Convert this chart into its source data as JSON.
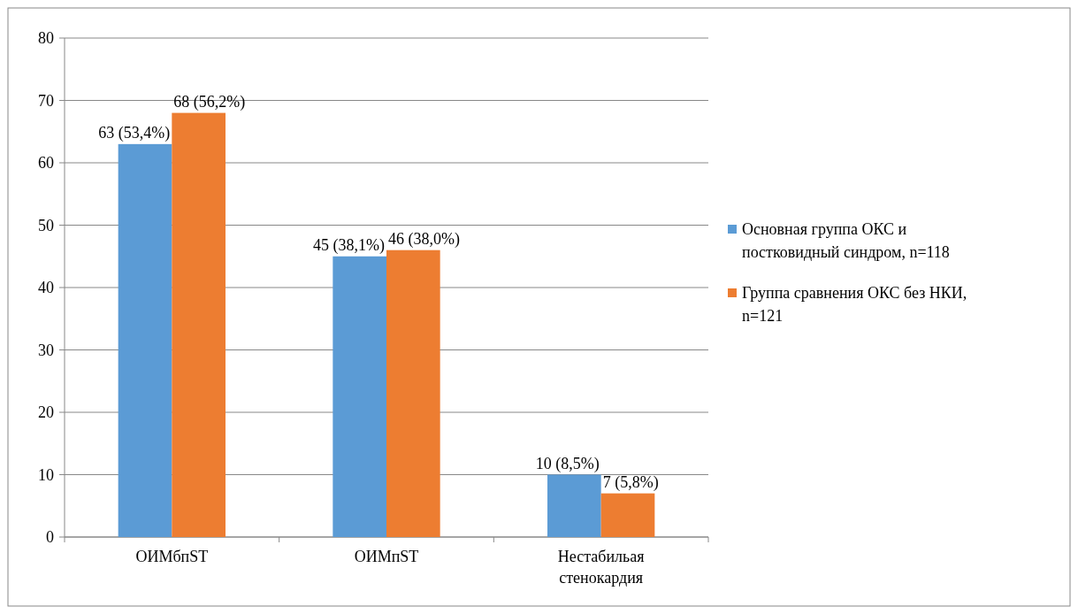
{
  "chart_data": {
    "type": "bar",
    "categories": [
      "ОИМбпST",
      "ОИМпST",
      "Нестабильая стенокардия"
    ],
    "series": [
      {
        "name": "Основная группа ОКС и постковидный синдром, n=118",
        "color": "#5b9bd5",
        "values": [
          63,
          45,
          10
        ],
        "value_labels": [
          "63 (53,4%)",
          "45 (38,1%)",
          "10 (8,5%)"
        ]
      },
      {
        "name": "Группа сравнения ОКС без НКИ, n=121",
        "color": "#ed7d31",
        "values": [
          68,
          46,
          7
        ],
        "value_labels": [
          "68 (56,2%)",
          "46 (38,0%)",
          "7 (5,8%)"
        ]
      }
    ],
    "ylim": [
      0,
      80
    ],
    "yticks": [
      0,
      10,
      20,
      30,
      40,
      50,
      60,
      70,
      80
    ],
    "grid": "y",
    "legend": "right"
  }
}
